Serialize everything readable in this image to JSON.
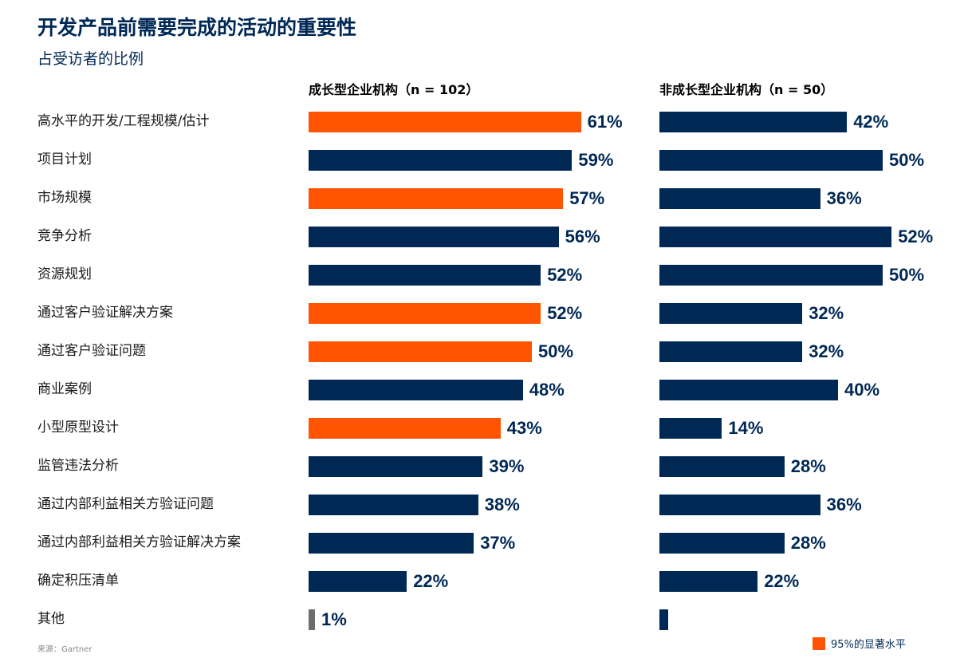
{
  "title": "开发产品前需要完成的活动的重要性",
  "subtitle": "占受访者的比例",
  "source": "来源：Gartner",
  "legend": {
    "label": "95%的显著水平",
    "color": "#FF5400"
  },
  "colors": {
    "navy": "#002855",
    "orange": "#FF5400",
    "gray": "#6D6D6D"
  },
  "chart_data": {
    "type": "bar",
    "orientation": "horizontal",
    "title": "开发产品前需要完成的活动的重要性",
    "subtitle": "占受访者的比例",
    "unit": "%",
    "categories": [
      "高水平的开发/工程规模/估计",
      "项目计划",
      "市场规模",
      "竞争分析",
      "资源规划",
      "通过客户验证解决方案",
      "通过客户验证问题",
      "商业案例",
      "小型原型设计",
      "监管违法分析",
      "通过内部利益相关方验证问题",
      "通过内部利益相关方验证解决方案",
      "确定积压清单",
      "其他"
    ],
    "series": [
      {
        "name": "成长型企业机构（n = 102）",
        "values": [
          61,
          59,
          57,
          56,
          52,
          52,
          50,
          48,
          43,
          39,
          38,
          37,
          22,
          1
        ],
        "labels": [
          "61%",
          "59%",
          "57%",
          "56%",
          "52%",
          "52%",
          "50%",
          "48%",
          "43%",
          "39%",
          "38%",
          "37%",
          "22%",
          "1%"
        ],
        "significant": [
          true,
          false,
          true,
          false,
          false,
          true,
          true,
          false,
          true,
          false,
          false,
          false,
          false,
          false
        ]
      },
      {
        "name": "非成长型企业机构（n = 50）",
        "values": [
          42,
          50,
          36,
          52,
          50,
          32,
          32,
          40,
          14,
          28,
          36,
          28,
          22,
          2
        ],
        "labels": [
          "42%",
          "50%",
          "36%",
          "52%",
          "50%",
          "32%",
          "32%",
          "40%",
          "14%",
          "28%",
          "36%",
          "28%",
          "22%",
          ""
        ],
        "significant": [
          false,
          false,
          false,
          false,
          false,
          false,
          false,
          false,
          false,
          false,
          false,
          false,
          false,
          false
        ]
      }
    ],
    "xlim": [
      0,
      100
    ],
    "grid": false,
    "legend_position": "bottom-right"
  }
}
